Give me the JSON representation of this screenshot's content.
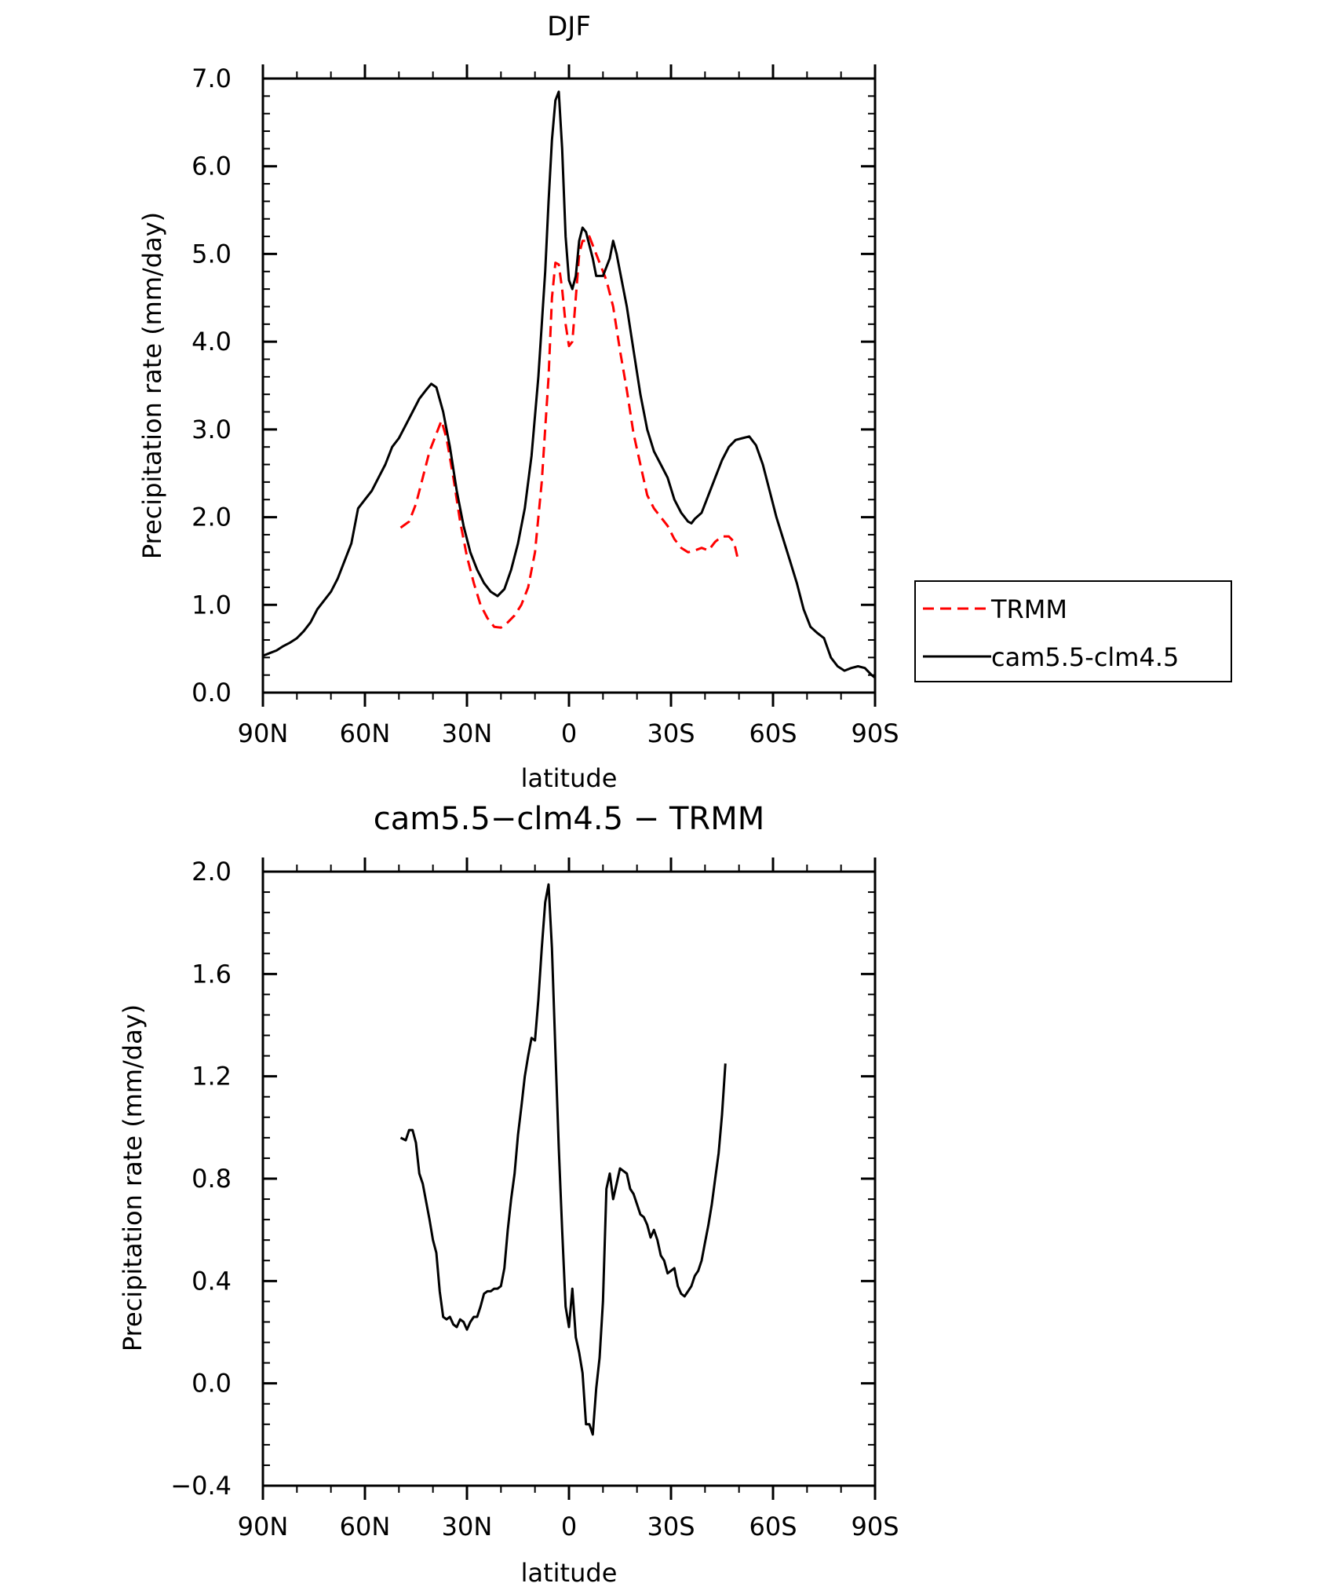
{
  "chart_data": [
    {
      "type": "line",
      "title": "DJF",
      "xlabel": "latitude",
      "ylabel": "Precipitation rate (mm/day)",
      "xlim": [
        90,
        -90
      ],
      "ylim": [
        0,
        7
      ],
      "x_ticks": [
        {
          "value": 90,
          "label": "90N"
        },
        {
          "value": 60,
          "label": "60N"
        },
        {
          "value": 30,
          "label": "30N"
        },
        {
          "value": 0,
          "label": "0"
        },
        {
          "value": -30,
          "label": "30S"
        },
        {
          "value": -60,
          "label": "60S"
        },
        {
          "value": -90,
          "label": "90S"
        }
      ],
      "y_ticks": [
        {
          "value": 0,
          "label": "0.0"
        },
        {
          "value": 1,
          "label": "1.0"
        },
        {
          "value": 2,
          "label": "2.0"
        },
        {
          "value": 3,
          "label": "3.0"
        },
        {
          "value": 4,
          "label": "4.0"
        },
        {
          "value": 5,
          "label": "5.0"
        },
        {
          "value": 6,
          "label": "6.0"
        },
        {
          "value": 7,
          "label": "7.0"
        }
      ],
      "legend": "right",
      "series": [
        {
          "name": "TRMM",
          "color": "#ff0000",
          "dash": true,
          "points": [
            [
              49.5,
              1.88
            ],
            [
              47,
              1.95
            ],
            [
              45,
              2.15
            ],
            [
              43,
              2.45
            ],
            [
              41,
              2.75
            ],
            [
              39,
              2.95
            ],
            [
              37.5,
              3.1
            ],
            [
              36,
              2.9
            ],
            [
              34,
              2.45
            ],
            [
              32,
              1.95
            ],
            [
              30,
              1.55
            ],
            [
              28,
              1.25
            ],
            [
              26,
              1.0
            ],
            [
              24,
              0.85
            ],
            [
              22,
              0.75
            ],
            [
              20,
              0.74
            ],
            [
              18,
              0.8
            ],
            [
              16,
              0.88
            ],
            [
              14,
              1.0
            ],
            [
              12,
              1.2
            ],
            [
              10,
              1.6
            ],
            [
              8,
              2.4
            ],
            [
              6,
              3.6
            ],
            [
              5,
              4.5
            ],
            [
              4,
              4.9
            ],
            [
              3,
              4.88
            ],
            [
              2,
              4.6
            ],
            [
              1,
              4.2
            ],
            [
              0,
              3.95
            ],
            [
              -1,
              4.0
            ],
            [
              -2,
              4.5
            ],
            [
              -3,
              5.0
            ],
            [
              -4,
              5.15
            ],
            [
              -5,
              5.15
            ],
            [
              -6,
              5.2
            ],
            [
              -7,
              5.1
            ],
            [
              -9,
              4.9
            ],
            [
              -11,
              4.7
            ],
            [
              -13,
              4.4
            ],
            [
              -15,
              3.9
            ],
            [
              -17,
              3.45
            ],
            [
              -19,
              2.95
            ],
            [
              -21,
              2.6
            ],
            [
              -23,
              2.25
            ],
            [
              -25,
              2.1
            ],
            [
              -27,
              2.0
            ],
            [
              -29,
              1.9
            ],
            [
              -31,
              1.75
            ],
            [
              -33,
              1.65
            ],
            [
              -35,
              1.6
            ],
            [
              -37,
              1.62
            ],
            [
              -39,
              1.65
            ],
            [
              -41,
              1.62
            ],
            [
              -43,
              1.72
            ],
            [
              -45,
              1.78
            ],
            [
              -47,
              1.78
            ],
            [
              -48.5,
              1.72
            ],
            [
              -49.5,
              1.55
            ]
          ]
        },
        {
          "name": "cam5.5-clm4.5",
          "color": "#000000",
          "dash": false,
          "points": [
            [
              90,
              0.42
            ],
            [
              88,
              0.45
            ],
            [
              86,
              0.48
            ],
            [
              84,
              0.53
            ],
            [
              82,
              0.57
            ],
            [
              80,
              0.62
            ],
            [
              78,
              0.7
            ],
            [
              76,
              0.8
            ],
            [
              74,
              0.95
            ],
            [
              72,
              1.05
            ],
            [
              70,
              1.15
            ],
            [
              68,
              1.3
            ],
            [
              66,
              1.5
            ],
            [
              64,
              1.7
            ],
            [
              62,
              2.1
            ],
            [
              60,
              2.2
            ],
            [
              58,
              2.3
            ],
            [
              56,
              2.45
            ],
            [
              54,
              2.6
            ],
            [
              52,
              2.8
            ],
            [
              50,
              2.9
            ],
            [
              48,
              3.05
            ],
            [
              46,
              3.2
            ],
            [
              44,
              3.35
            ],
            [
              42,
              3.45
            ],
            [
              40.5,
              3.52
            ],
            [
              39,
              3.48
            ],
            [
              37,
              3.2
            ],
            [
              35,
              2.8
            ],
            [
              33,
              2.3
            ],
            [
              31,
              1.9
            ],
            [
              29,
              1.6
            ],
            [
              27,
              1.4
            ],
            [
              25,
              1.25
            ],
            [
              23,
              1.15
            ],
            [
              21,
              1.1
            ],
            [
              19,
              1.18
            ],
            [
              17,
              1.4
            ],
            [
              15,
              1.7
            ],
            [
              13,
              2.1
            ],
            [
              11,
              2.7
            ],
            [
              9,
              3.6
            ],
            [
              7,
              4.8
            ],
            [
              6,
              5.6
            ],
            [
              5,
              6.3
            ],
            [
              4,
              6.75
            ],
            [
              3,
              6.85
            ],
            [
              2,
              6.2
            ],
            [
              1,
              5.2
            ],
            [
              0,
              4.7
            ],
            [
              -1,
              4.6
            ],
            [
              -2,
              4.75
            ],
            [
              -3,
              5.15
            ],
            [
              -4,
              5.3
            ],
            [
              -5,
              5.25
            ],
            [
              -6,
              5.1
            ],
            [
              -7,
              4.95
            ],
            [
              -8,
              4.75
            ],
            [
              -10,
              4.75
            ],
            [
              -12,
              4.95
            ],
            [
              -13,
              5.15
            ],
            [
              -14,
              5.0
            ],
            [
              -15,
              4.8
            ],
            [
              -17,
              4.4
            ],
            [
              -19,
              3.9
            ],
            [
              -21,
              3.4
            ],
            [
              -23,
              3.0
            ],
            [
              -25,
              2.75
            ],
            [
              -27,
              2.6
            ],
            [
              -29,
              2.45
            ],
            [
              -31,
              2.2
            ],
            [
              -33,
              2.05
            ],
            [
              -35,
              1.95
            ],
            [
              -36,
              1.93
            ],
            [
              -37,
              1.98
            ],
            [
              -39,
              2.05
            ],
            [
              -41,
              2.25
            ],
            [
              -43,
              2.45
            ],
            [
              -45,
              2.65
            ],
            [
              -47,
              2.8
            ],
            [
              -49,
              2.88
            ],
            [
              -51,
              2.9
            ],
            [
              -53,
              2.92
            ],
            [
              -55,
              2.82
            ],
            [
              -57,
              2.6
            ],
            [
              -59,
              2.3
            ],
            [
              -61,
              2.0
            ],
            [
              -63,
              1.75
            ],
            [
              -65,
              1.5
            ],
            [
              -67,
              1.25
            ],
            [
              -69,
              0.95
            ],
            [
              -71,
              0.75
            ],
            [
              -73,
              0.68
            ],
            [
              -75,
              0.62
            ],
            [
              -77,
              0.4
            ],
            [
              -79,
              0.3
            ],
            [
              -81,
              0.25
            ],
            [
              -83,
              0.28
            ],
            [
              -85,
              0.3
            ],
            [
              -87,
              0.28
            ],
            [
              -89,
              0.2
            ],
            [
              -90,
              0.17
            ]
          ]
        }
      ]
    },
    {
      "type": "line",
      "title": "cam5.5−clm4.5 − TRMM",
      "xlabel": "latitude",
      "ylabel": "Precipitation rate (mm/day)",
      "xlim": [
        90,
        -90
      ],
      "ylim": [
        -0.4,
        2.0
      ],
      "x_ticks": [
        {
          "value": 90,
          "label": "90N"
        },
        {
          "value": 60,
          "label": "60N"
        },
        {
          "value": 30,
          "label": "30N"
        },
        {
          "value": 0,
          "label": "0"
        },
        {
          "value": -30,
          "label": "30S"
        },
        {
          "value": -60,
          "label": "60S"
        },
        {
          "value": -90,
          "label": "90S"
        }
      ],
      "y_ticks": [
        {
          "value": -0.4,
          "label": "−0.4"
        },
        {
          "value": 0.0,
          "label": "0.0"
        },
        {
          "value": 0.4,
          "label": "0.4"
        },
        {
          "value": 0.8,
          "label": "0.8"
        },
        {
          "value": 1.2,
          "label": "1.2"
        },
        {
          "value": 1.6,
          "label": "1.6"
        },
        {
          "value": 2.0,
          "label": "2.0"
        }
      ],
      "series": [
        {
          "color": "#000000",
          "dash": false,
          "points": [
            [
              49.5,
              0.96
            ],
            [
              48,
              0.95
            ],
            [
              47,
              0.99
            ],
            [
              46,
              0.99
            ],
            [
              45,
              0.94
            ],
            [
              44,
              0.82
            ],
            [
              43,
              0.78
            ],
            [
              42,
              0.71
            ],
            [
              41,
              0.64
            ],
            [
              40,
              0.56
            ],
            [
              39,
              0.51
            ],
            [
              38,
              0.36
            ],
            [
              37,
              0.26
            ],
            [
              36,
              0.25
            ],
            [
              35,
              0.26
            ],
            [
              34,
              0.23
            ],
            [
              33,
              0.22
            ],
            [
              32,
              0.25
            ],
            [
              31,
              0.24
            ],
            [
              30,
              0.21
            ],
            [
              29,
              0.24
            ],
            [
              28,
              0.26
            ],
            [
              27,
              0.26
            ],
            [
              26,
              0.3
            ],
            [
              25,
              0.35
            ],
            [
              24,
              0.36
            ],
            [
              23,
              0.36
            ],
            [
              22,
              0.37
            ],
            [
              21,
              0.37
            ],
            [
              20,
              0.38
            ],
            [
              19,
              0.45
            ],
            [
              18,
              0.6
            ],
            [
              17,
              0.72
            ],
            [
              16,
              0.82
            ],
            [
              15,
              0.97
            ],
            [
              14,
              1.08
            ],
            [
              13,
              1.2
            ],
            [
              12,
              1.28
            ],
            [
              11,
              1.35
            ],
            [
              10,
              1.34
            ],
            [
              9,
              1.5
            ],
            [
              8,
              1.7
            ],
            [
              7,
              1.88
            ],
            [
              6,
              1.95
            ],
            [
              5,
              1.7
            ],
            [
              4,
              1.3
            ],
            [
              3,
              0.92
            ],
            [
              2,
              0.6
            ],
            [
              1,
              0.3
            ],
            [
              0,
              0.22
            ],
            [
              -1,
              0.37
            ],
            [
              -2,
              0.18
            ],
            [
              -3,
              0.12
            ],
            [
              -4,
              0.04
            ],
            [
              -5,
              -0.16
            ],
            [
              -6,
              -0.16
            ],
            [
              -7,
              -0.2
            ],
            [
              -8,
              -0.02
            ],
            [
              -9,
              0.1
            ],
            [
              -10,
              0.32
            ],
            [
              -11,
              0.76
            ],
            [
              -12,
              0.82
            ],
            [
              -13,
              0.72
            ],
            [
              -14,
              0.78
            ],
            [
              -15,
              0.84
            ],
            [
              -16,
              0.83
            ],
            [
              -17,
              0.82
            ],
            [
              -18,
              0.76
            ],
            [
              -19,
              0.74
            ],
            [
              -20,
              0.7
            ],
            [
              -21,
              0.66
            ],
            [
              -22,
              0.65
            ],
            [
              -23,
              0.62
            ],
            [
              -24,
              0.57
            ],
            [
              -25,
              0.6
            ],
            [
              -26,
              0.56
            ],
            [
              -27,
              0.5
            ],
            [
              -28,
              0.48
            ],
            [
              -29,
              0.43
            ],
            [
              -30,
              0.44
            ],
            [
              -31,
              0.45
            ],
            [
              -32,
              0.38
            ],
            [
              -33,
              0.35
            ],
            [
              -34,
              0.34
            ],
            [
              -35,
              0.36
            ],
            [
              -36,
              0.38
            ],
            [
              -37,
              0.42
            ],
            [
              -38,
              0.44
            ],
            [
              -39,
              0.48
            ],
            [
              -40,
              0.55
            ],
            [
              -41,
              0.62
            ],
            [
              -42,
              0.7
            ],
            [
              -43,
              0.8
            ],
            [
              -44,
              0.9
            ],
            [
              -45,
              1.05
            ],
            [
              -46,
              1.25
            ]
          ]
        }
      ]
    }
  ]
}
